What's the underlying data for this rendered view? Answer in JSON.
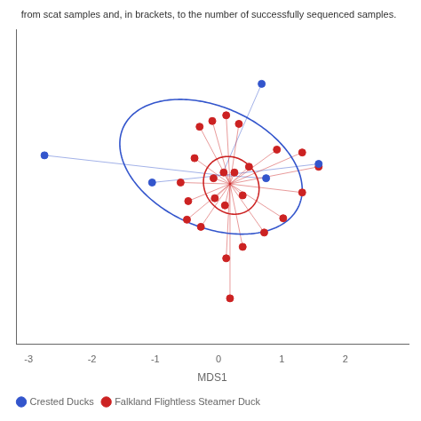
{
  "chart_data": {
    "type": "scatter",
    "title": "from scat samples and, in brackets, to the number of successfully sequenced samples.",
    "xlabel": "MDS1",
    "xlim": [
      -3.2,
      3.0
    ],
    "ylim": [
      -1.1,
      1.1
    ],
    "xticks": [
      -3,
      -2,
      -1,
      0,
      1,
      2
    ],
    "tick_labels": "x",
    "grid": false,
    "legend": "bottom",
    "series": [
      {
        "name": "Crested Ducks",
        "color": "#3355cc",
        "centroid": [
          0.05,
          0.08
        ],
        "ellipse": {
          "cx": -0.12,
          "cy": 0.14,
          "width": 2.9,
          "height": 0.88,
          "angle": -7
        },
        "values": [
          [
            -2.75,
            0.22
          ],
          [
            0.68,
            0.72
          ],
          [
            -1.05,
            0.03
          ],
          [
            0.75,
            0.06
          ],
          [
            1.58,
            0.16
          ]
        ]
      },
      {
        "name": "Falkland Flightless Steamer Duck",
        "color": "#cc2222",
        "centroid": [
          0.18,
          0.02
        ],
        "ellipse": {
          "cx": 0.2,
          "cy": 0.01,
          "width": 0.88,
          "height": 0.4,
          "angle": -4
        },
        "values": [
          [
            -0.3,
            0.42
          ],
          [
            -0.1,
            0.46
          ],
          [
            0.12,
            0.5
          ],
          [
            0.32,
            0.44
          ],
          [
            -0.38,
            0.2
          ],
          [
            -0.6,
            0.03
          ],
          [
            -0.48,
            -0.1
          ],
          [
            -0.5,
            -0.23
          ],
          [
            -0.28,
            -0.28
          ],
          [
            0.12,
            -0.5
          ],
          [
            0.18,
            -0.78
          ],
          [
            0.38,
            -0.42
          ],
          [
            0.72,
            -0.32
          ],
          [
            1.02,
            -0.22
          ],
          [
            1.32,
            -0.04
          ],
          [
            1.58,
            0.14
          ],
          [
            1.32,
            0.24
          ],
          [
            0.92,
            0.26
          ],
          [
            0.48,
            0.14
          ],
          [
            0.38,
            -0.06
          ],
          [
            0.25,
            0.1
          ],
          [
            0.08,
            0.1
          ],
          [
            -0.08,
            0.06
          ],
          [
            -0.06,
            -0.08
          ],
          [
            0.1,
            -0.13
          ]
        ]
      }
    ]
  }
}
